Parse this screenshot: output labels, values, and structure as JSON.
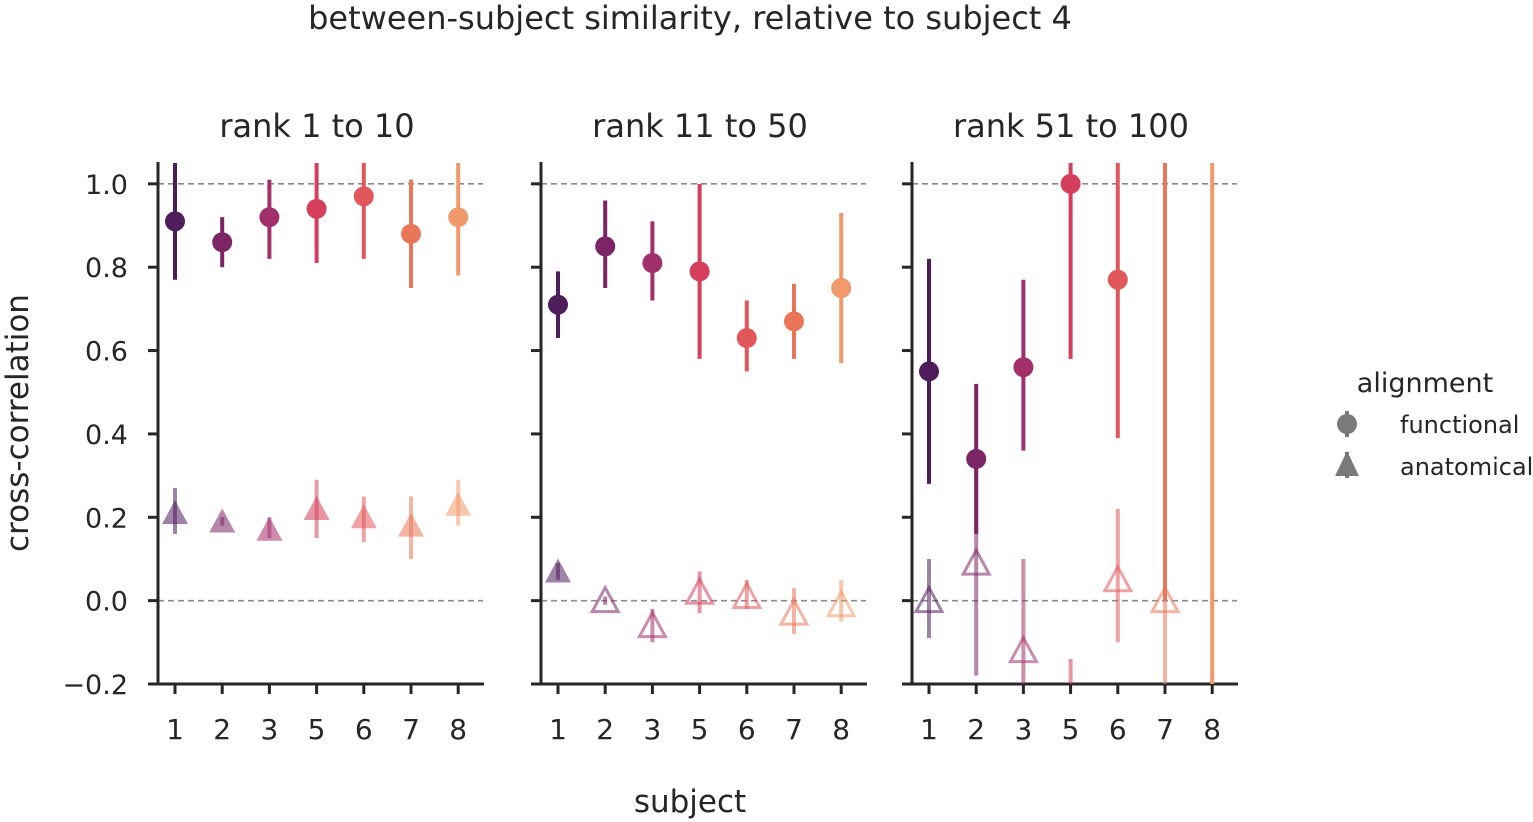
{
  "chart_data": {
    "type": "scatter",
    "title": "between-subject similarity, relative to subject 4",
    "xlabel": "subject",
    "ylabel": "cross-correlation",
    "ylim": [
      -0.2,
      1.05
    ],
    "yticks": [
      -0.2,
      0.0,
      0.2,
      0.4,
      0.6,
      0.8,
      1.0
    ],
    "ytick_labels": [
      "−0.2",
      "0.0",
      "0.2",
      "0.4",
      "0.6",
      "0.8",
      "1.0"
    ],
    "reference_lines": [
      0.0,
      1.0
    ],
    "categories": [
      "1",
      "2",
      "3",
      "5",
      "6",
      "7",
      "8"
    ],
    "subject_colors": [
      "#4f1d5c",
      "#7b2466",
      "#a2306a",
      "#d63f5c",
      "#e2585a",
      "#ea7659",
      "#f09a6b"
    ],
    "legend": {
      "title": "alignment",
      "position": "right",
      "entries": [
        {
          "label": "functional",
          "marker": "circle"
        },
        {
          "label": "anatomical",
          "marker": "triangle"
        }
      ]
    },
    "panels": [
      {
        "title": "rank 1 to 10",
        "series": [
          {
            "name": "functional",
            "values": [
              0.91,
              0.86,
              0.92,
              0.94,
              0.97,
              0.88,
              0.92
            ],
            "lower": [
              0.77,
              0.8,
              0.82,
              0.81,
              0.82,
              0.75,
              0.78
            ],
            "upper": [
              1.05,
              0.92,
              1.01,
              1.05,
              1.05,
              1.01,
              1.05
            ]
          },
          {
            "name": "anatomical",
            "values": [
              0.21,
              0.19,
              0.17,
              0.22,
              0.2,
              0.18,
              0.23
            ],
            "lower": [
              0.16,
              0.18,
              0.15,
              0.15,
              0.14,
              0.1,
              0.18
            ],
            "upper": [
              0.27,
              0.2,
              0.2,
              0.29,
              0.25,
              0.25,
              0.29
            ],
            "filled": [
              true,
              true,
              true,
              true,
              true,
              true,
              true
            ]
          }
        ]
      },
      {
        "title": "rank 11 to 50",
        "series": [
          {
            "name": "functional",
            "values": [
              0.71,
              0.85,
              0.81,
              0.79,
              0.63,
              0.67,
              0.75
            ],
            "lower": [
              0.63,
              0.75,
              0.72,
              0.58,
              0.55,
              0.58,
              0.57
            ],
            "upper": [
              0.79,
              0.96,
              0.91,
              1.0,
              0.72,
              0.76,
              0.93
            ],
            "filled": [
              true,
              true,
              true,
              true,
              true,
              true,
              true
            ]
          },
          {
            "name": "anatomical",
            "values": [
              0.07,
              0.0,
              -0.06,
              0.02,
              0.01,
              -0.03,
              -0.01
            ],
            "lower": [
              0.05,
              -0.01,
              -0.1,
              -0.03,
              -0.02,
              -0.08,
              -0.05
            ],
            "upper": [
              0.09,
              0.01,
              -0.02,
              0.07,
              0.05,
              0.03,
              0.05
            ],
            "filled": [
              true,
              false,
              false,
              false,
              false,
              false,
              false
            ]
          }
        ]
      },
      {
        "title": "rank 51 to 100",
        "series": [
          {
            "name": "functional",
            "values": [
              0.55,
              0.34,
              0.56,
              1.0,
              0.77,
              null,
              null
            ],
            "lower": [
              0.28,
              0.16,
              0.36,
              0.58,
              0.39,
              0.0,
              -0.2
            ],
            "upper": [
              0.82,
              0.52,
              0.77,
              1.05,
              1.05,
              1.05,
              1.05
            ]
          },
          {
            "name": "anatomical",
            "values": [
              0.0,
              0.09,
              -0.12,
              null,
              0.05,
              0.0,
              null
            ],
            "lower": [
              -0.09,
              -0.18,
              -0.2,
              -0.2,
              -0.1,
              -0.2,
              -0.2
            ],
            "upper": [
              0.1,
              0.32,
              0.1,
              -0.14,
              0.22,
              0.25,
              -0.18
            ],
            "filled": [
              false,
              false,
              false,
              false,
              false,
              false,
              false
            ]
          }
        ]
      }
    ]
  }
}
